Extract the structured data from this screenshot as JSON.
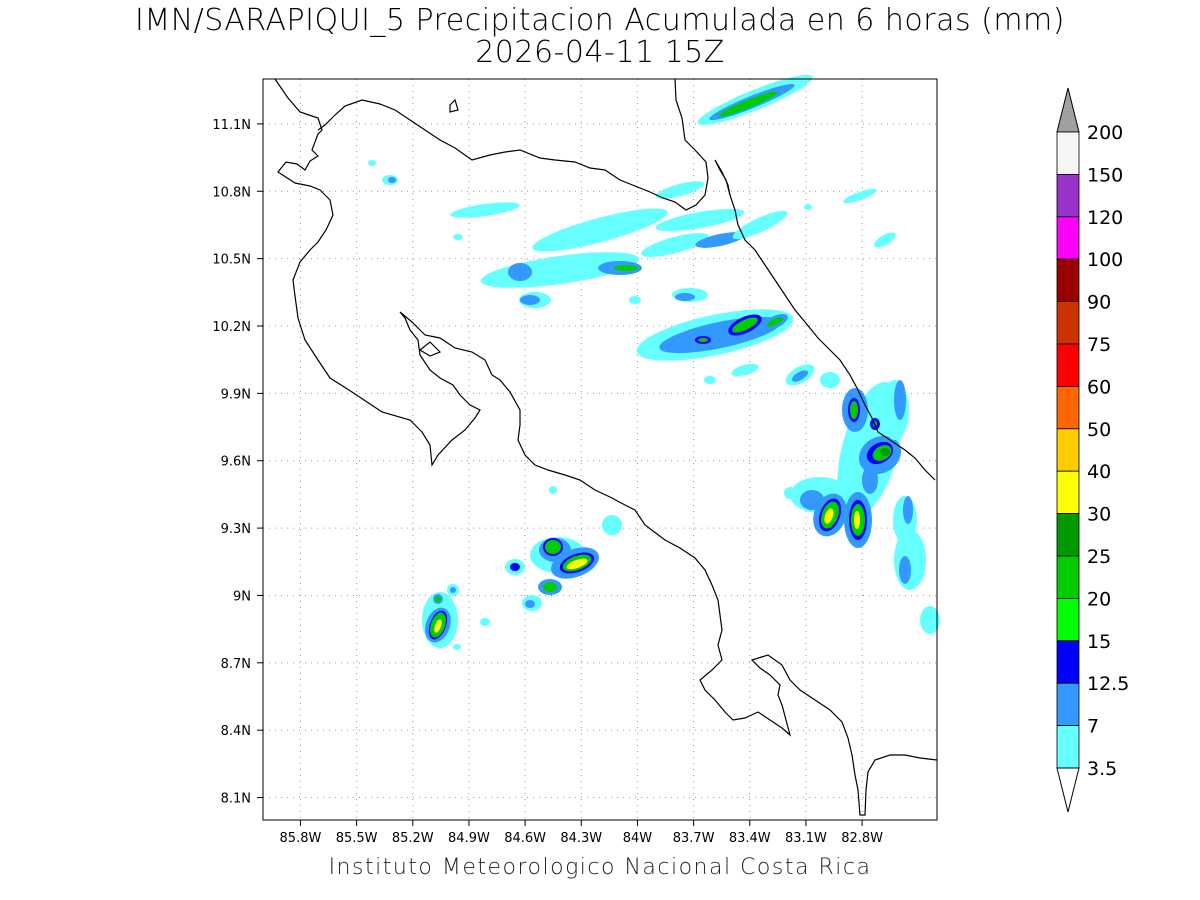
{
  "title": {
    "line1": "IMN/SARAPIQUI_5 Precipitacion Acumulada en 6 horas (mm)",
    "line2": "2026-04-11 15Z"
  },
  "footer": "Instituto Meteorologico Nacional Costa Rica",
  "map": {
    "lon_range": [
      -86.0,
      -82.4
    ],
    "lat_range": [
      8.0,
      11.3
    ],
    "lon_ticks": [
      "85.8W",
      "85.5W",
      "85.2W",
      "84.9W",
      "84.6W",
      "84.3W",
      "84W",
      "83.7W",
      "83.4W",
      "83.1W",
      "82.8W"
    ],
    "lon_values": [
      -85.8,
      -85.5,
      -85.2,
      -84.9,
      -84.6,
      -84.3,
      -84.0,
      -83.7,
      -83.4,
      -83.1,
      -82.8
    ],
    "lat_ticks": [
      "11.1N",
      "10.8N",
      "10.5N",
      "10.2N",
      "9.9N",
      "9.6N",
      "9.3N",
      "9N",
      "8.7N",
      "8.4N",
      "8.1N"
    ],
    "lat_values": [
      11.1,
      10.8,
      10.5,
      10.2,
      9.9,
      9.6,
      9.3,
      9.0,
      8.7,
      8.4,
      8.1
    ],
    "grid": true
  },
  "colorbar": {
    "labels": [
      "200",
      "150",
      "120",
      "100",
      "90",
      "75",
      "60",
      "50",
      "40",
      "30",
      "25",
      "20",
      "15",
      "12.5",
      "7",
      "3.5"
    ],
    "colors": [
      "#f5f5f5",
      "#9933cc",
      "#ff00ff",
      "#990000",
      "#cc3300",
      "#ff0000",
      "#ff6600",
      "#ffcc00",
      "#ffff00",
      "#009900",
      "#00cc00",
      "#00ff00",
      "#0000ff",
      "#3399ff",
      "#66ffff"
    ],
    "over_color": "#a0a0a0",
    "under_color": "#ffffff"
  }
}
